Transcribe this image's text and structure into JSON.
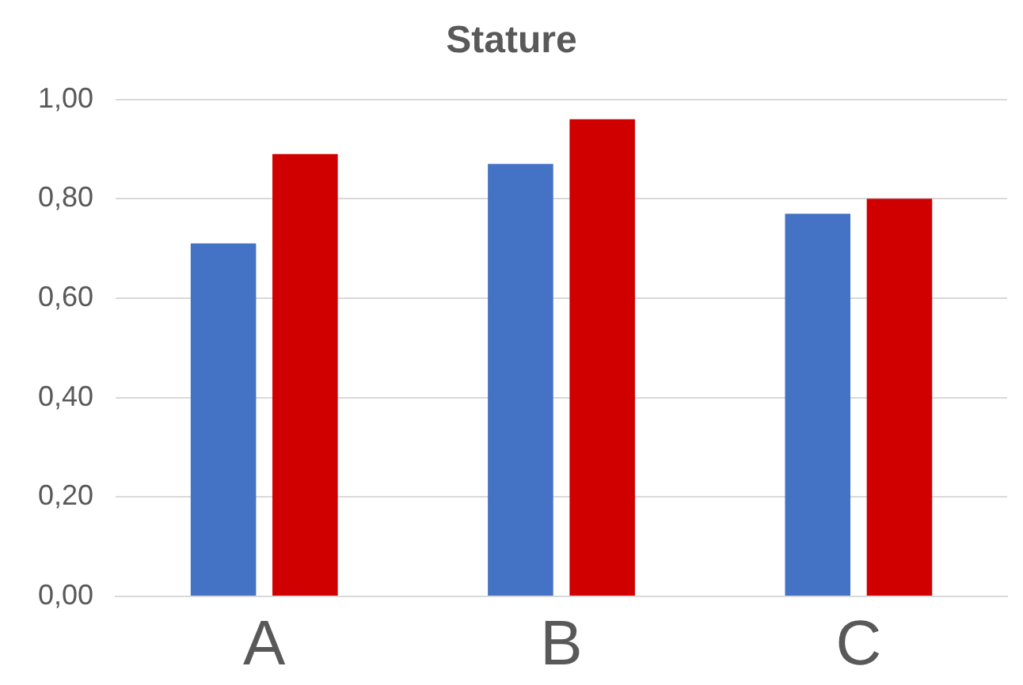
{
  "chart_data": {
    "type": "bar",
    "title": "Stature",
    "categories": [
      "A",
      "B",
      "C"
    ],
    "series": [
      {
        "color": "#4472c4",
        "values": [
          0.71,
          0.87,
          0.77
        ]
      },
      {
        "color": "#d00000",
        "values": [
          0.89,
          0.96,
          0.8
        ]
      }
    ],
    "ylim": [
      0,
      1
    ],
    "yticks": [
      {
        "value": 0,
        "label": "0,00"
      },
      {
        "value": 0.2,
        "label": "0,20"
      },
      {
        "value": 0.4,
        "label": "0,40"
      },
      {
        "value": 0.6,
        "label": "0,60"
      },
      {
        "value": 0.8,
        "label": "0,80"
      },
      {
        "value": 1,
        "label": "1,00"
      }
    ],
    "grid": "y",
    "legend": false
  }
}
